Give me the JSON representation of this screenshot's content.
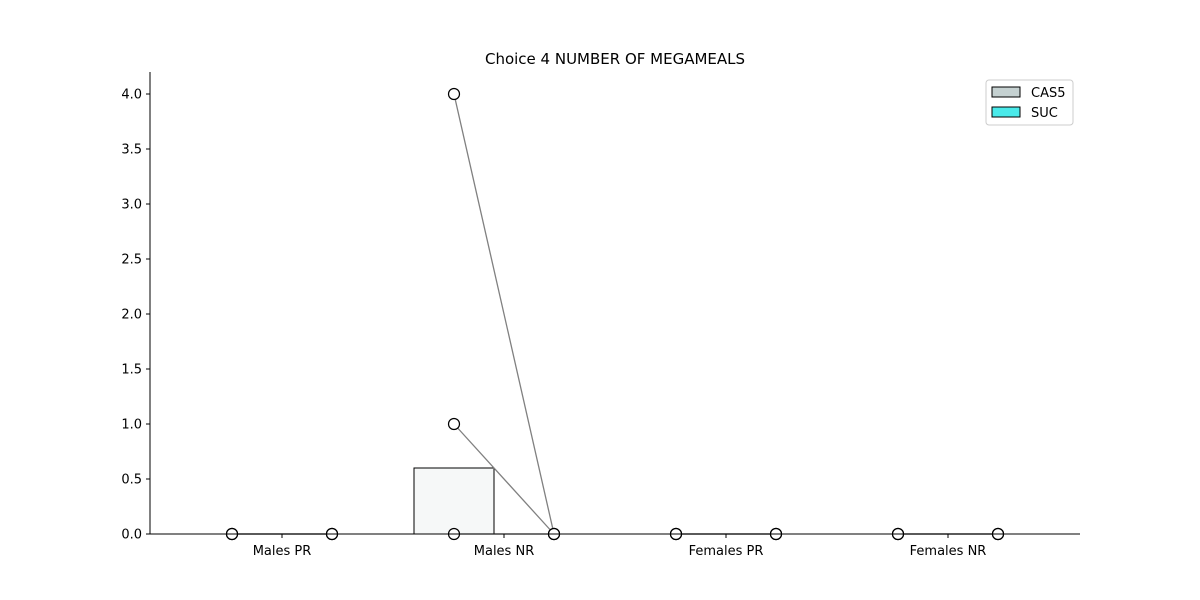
{
  "chart_data": {
    "type": "bar",
    "title": "Choice  4 NUMBER OF MEGAMEALS",
    "xlabel": "",
    "ylabel": "",
    "categories": [
      "Males PR",
      "Males NR",
      "Females PR",
      "Females NR"
    ],
    "ylim": [
      0,
      4.2
    ],
    "yticks": [
      "0.0",
      "0.5",
      "1.0",
      "1.5",
      "2.0",
      "2.5",
      "3.0",
      "3.5",
      "4.0"
    ],
    "grid": false,
    "legend_position": "top-right",
    "series": [
      {
        "name": "CAS5",
        "color": "#c5d1d1",
        "values": [
          0,
          0.6,
          0,
          0
        ]
      },
      {
        "name": "SUC",
        "color": "#4aeaea",
        "values": [
          0,
          0,
          0,
          0
        ]
      }
    ],
    "individual_points": [
      {
        "category": "Males PR",
        "pairs": [
          [
            0,
            0
          ],
          [
            0,
            0
          ],
          [
            0,
            0
          ]
        ]
      },
      {
        "category": "Males NR",
        "pairs": [
          [
            4,
            0
          ],
          [
            1,
            0
          ],
          [
            0,
            0
          ]
        ]
      },
      {
        "category": "Females PR",
        "pairs": [
          [
            0,
            0
          ],
          [
            0,
            0
          ],
          [
            0,
            0
          ]
        ]
      },
      {
        "category": "Females NR",
        "pairs": [
          [
            0,
            0
          ],
          [
            0,
            0
          ],
          [
            0,
            0
          ]
        ]
      }
    ]
  }
}
